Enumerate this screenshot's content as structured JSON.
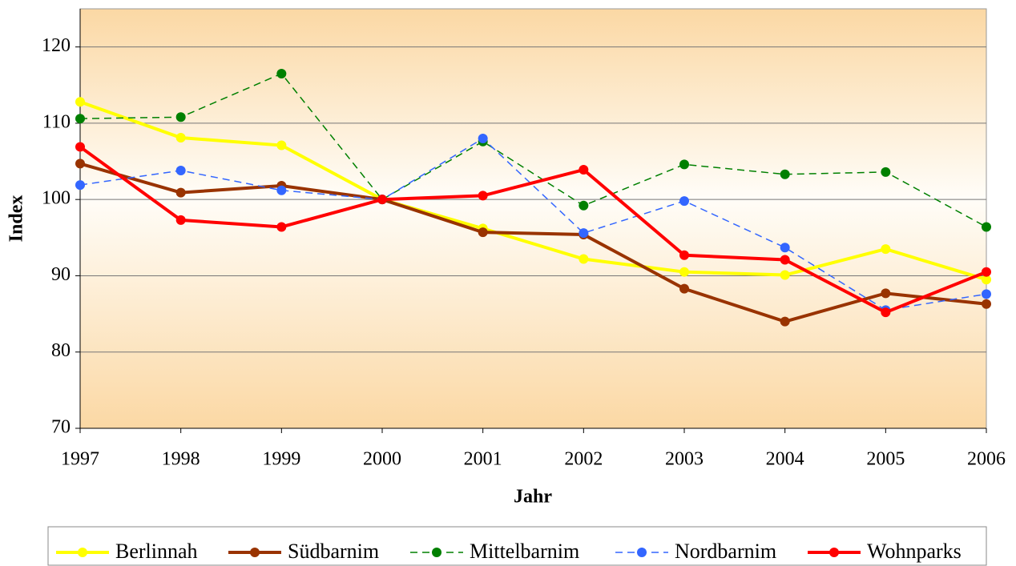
{
  "chart_data": {
    "type": "line",
    "x_label": "Jahr",
    "y_label": "Index",
    "x": [
      1997,
      1998,
      1999,
      2000,
      2001,
      2002,
      2003,
      2004,
      2005,
      2006
    ],
    "xlim": [
      1997,
      2006
    ],
    "xticks": [
      1997,
      1998,
      1999,
      2000,
      2001,
      2002,
      2003,
      2004,
      2005,
      2006
    ],
    "ylim": [
      70,
      125
    ],
    "yticks": [
      70,
      80,
      90,
      100,
      110,
      120
    ],
    "grid": true,
    "legend": "bottom",
    "series": [
      {
        "name": "Berlinnah",
        "color": "#ffff00",
        "style": "solid",
        "values": [
          112.8,
          108.1,
          107.1,
          100,
          96.2,
          92.2,
          90.5,
          90.1,
          93.5,
          89.5
        ]
      },
      {
        "name": "Südbarnim",
        "color": "#993300",
        "style": "solid",
        "values": [
          104.7,
          100.9,
          101.8,
          100,
          95.7,
          95.4,
          88.3,
          84.0,
          87.7,
          86.3
        ]
      },
      {
        "name": "Mittelbarnim",
        "color": "#008000",
        "style": "dashed",
        "values": [
          110.6,
          110.8,
          116.5,
          100,
          107.6,
          99.2,
          104.6,
          103.3,
          103.6,
          96.4
        ]
      },
      {
        "name": "Nordbarnim",
        "color": "#3366ff",
        "style": "dashed",
        "values": [
          101.9,
          103.8,
          101.2,
          100,
          108.0,
          95.6,
          99.8,
          93.7,
          85.5,
          87.6
        ]
      },
      {
        "name": "Wohnparks",
        "color": "#ff0000",
        "style": "solid",
        "values": [
          106.9,
          97.3,
          96.4,
          100,
          100.5,
          103.9,
          92.7,
          92.1,
          85.2,
          90.5
        ]
      }
    ]
  }
}
